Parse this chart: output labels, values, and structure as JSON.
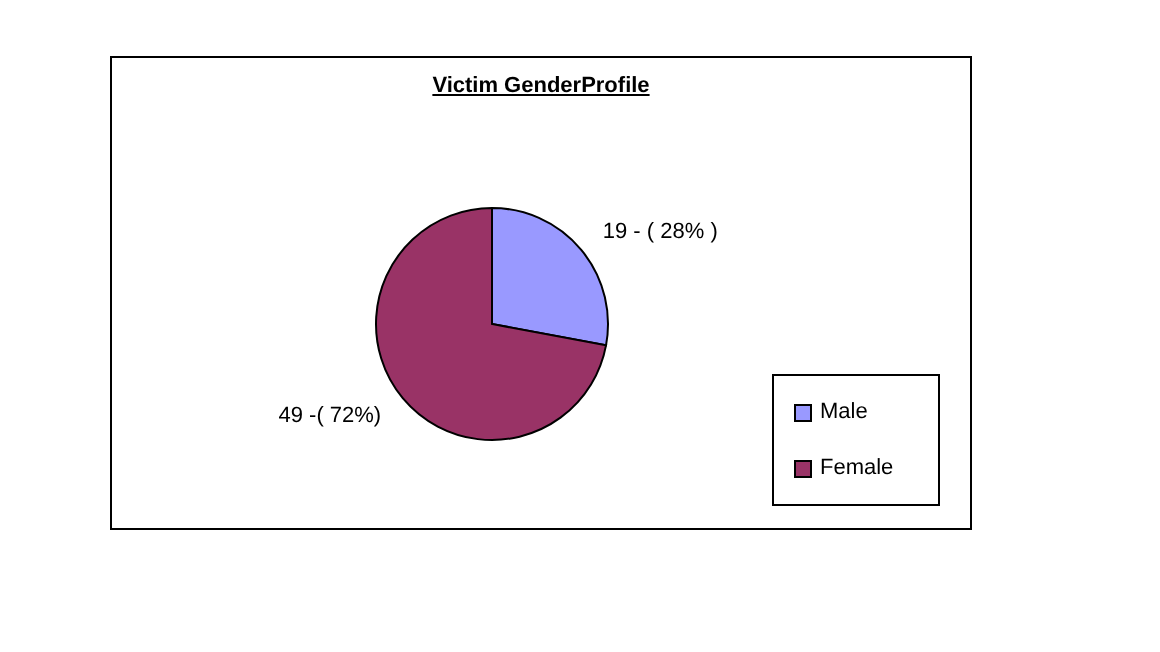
{
  "chart_data": {
    "type": "pie",
    "title": "Victim GenderProfile",
    "categories": [
      "Male",
      "Female"
    ],
    "values": [
      19,
      49
    ],
    "colors": [
      "#9999ff",
      "#993366"
    ],
    "value_labels": [
      "19 - ( 28% )",
      "49 -( 72%)"
    ],
    "legend": "bottom right"
  }
}
